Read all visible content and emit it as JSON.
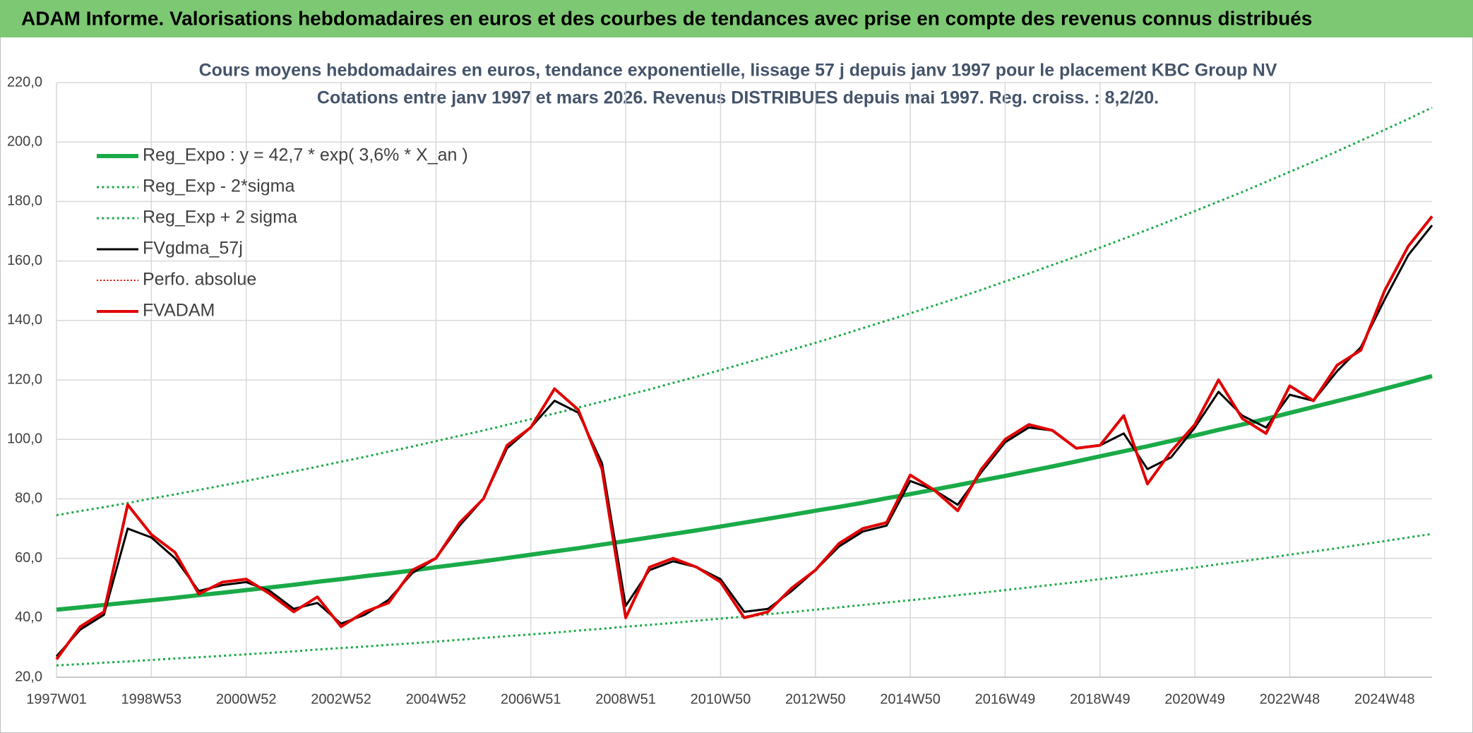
{
  "header": {
    "title": "ADAM Informe. Valorisations hebdomadaires en euros et des courbes de tendances avec prise en compte des revenus connus distribués"
  },
  "chart_data": {
    "type": "line",
    "title": "Cours moyens hebdomadaires en euros, tendance exponentielle, lissage 57 j depuis janv 1997 pour le placement KBC Group NV",
    "subtitle": "Cotations entre janv 1997 et mars 2026. Revenus DISTRIBUES depuis mai 1997. Reg. croiss. : 8,2/20.",
    "categories": [
      "1997W01",
      null,
      null,
      null,
      "1998W53",
      null,
      null,
      null,
      "2000W52",
      null,
      null,
      null,
      "2002W52",
      null,
      null,
      null,
      "2004W52",
      null,
      null,
      null,
      "2006W51",
      null,
      null,
      null,
      "2008W51",
      null,
      null,
      null,
      "2010W50",
      null,
      null,
      null,
      "2012W50",
      null,
      null,
      null,
      "2014W50",
      null,
      null,
      null,
      "2016W49",
      null,
      null,
      null,
      "2018W49",
      null,
      null,
      null,
      "2020W49",
      null,
      null,
      null,
      "2022W48",
      null,
      null,
      null,
      "2024W48",
      null,
      null
    ],
    "ylim": [
      20,
      220
    ],
    "yticks": [
      {
        "value": 20,
        "label": "20,0"
      },
      {
        "value": 40,
        "label": "40,0"
      },
      {
        "value": 60,
        "label": "60,0"
      },
      {
        "value": 80,
        "label": "80,0"
      },
      {
        "value": 100,
        "label": "100,0"
      },
      {
        "value": 120,
        "label": "120,0"
      },
      {
        "value": 140,
        "label": "140,0"
      },
      {
        "value": 160,
        "label": "160,0"
      },
      {
        "value": 180,
        "label": "180,0"
      },
      {
        "value": 200,
        "label": "200,0"
      },
      {
        "value": 220,
        "label": "220,0"
      }
    ],
    "grid": true,
    "legend": "upper-left",
    "series": [
      {
        "name": "Reg_Expo : y = 42,7 * exp( 3,6% *  X_an )",
        "color": "#1aaa48",
        "line_style": "solid",
        "line_width": 6,
        "values": [
          42.7,
          43.5,
          44.3,
          45.1,
          45.9,
          46.7,
          47.6,
          48.4,
          49.3,
          50.2,
          51.1,
          52.1,
          53.0,
          54.0,
          54.9,
          55.9,
          57.0,
          58.0,
          59.0,
          60.1,
          61.2,
          62.3,
          63.4,
          64.6,
          65.8,
          67.0,
          68.2,
          69.4,
          70.7,
          72.0,
          73.3,
          74.6,
          76.0,
          77.3,
          78.7,
          80.2,
          81.6,
          83.1,
          84.6,
          86.2,
          87.7,
          89.3,
          90.9,
          92.6,
          94.3,
          96.0,
          97.7,
          99.5,
          101.3,
          103.2,
          105.0,
          106.9,
          108.9,
          110.9,
          112.9,
          114.9,
          117.0,
          119.1,
          121.3
        ]
      },
      {
        "name": "Reg_Exp - 2*sigma",
        "color": "#1aaa48",
        "line_style": "dotted",
        "line_width": 3,
        "values": [
          24.0,
          24.4,
          24.9,
          25.3,
          25.8,
          26.3,
          26.7,
          27.2,
          27.7,
          28.2,
          28.7,
          29.3,
          29.8,
          30.3,
          30.9,
          31.4,
          32.0,
          32.6,
          33.2,
          33.8,
          34.4,
          35.0,
          35.7,
          36.3,
          37.0,
          37.6,
          38.3,
          39.0,
          39.7,
          40.4,
          41.2,
          41.9,
          42.7,
          43.5,
          44.3,
          45.1,
          45.9,
          46.7,
          47.6,
          48.4,
          49.3,
          50.2,
          51.1,
          52.0,
          53.0,
          53.9,
          54.9,
          55.9,
          56.9,
          58.0,
          59.0,
          60.1,
          61.2,
          62.3,
          63.4,
          64.6,
          65.8,
          67.0,
          68.2
        ]
      },
      {
        "name": "Reg_Exp + 2 sigma",
        "color": "#1aaa48",
        "line_style": "dotted",
        "line_width": 3,
        "values": [
          74.5,
          75.9,
          77.2,
          78.6,
          80.1,
          81.5,
          83.0,
          84.5,
          86.0,
          87.6,
          89.2,
          90.8,
          92.5,
          94.1,
          95.9,
          97.6,
          99.4,
          101.2,
          103.0,
          104.9,
          106.8,
          108.7,
          110.7,
          112.7,
          114.8,
          116.8,
          119.0,
          121.1,
          123.3,
          125.6,
          127.8,
          130.2,
          132.5,
          134.9,
          137.4,
          139.9,
          142.4,
          145.0,
          147.6,
          150.3,
          153.1,
          155.8,
          158.7,
          161.5,
          164.5,
          167.5,
          170.5,
          173.6,
          176.8,
          180.0,
          183.2,
          186.6,
          190.0,
          193.4,
          196.9,
          200.5,
          204.1,
          207.8,
          211.6
        ]
      },
      {
        "name": "FVgdma_57j",
        "color": "#000000",
        "line_style": "solid",
        "line_width": 3,
        "values": [
          27,
          36,
          41,
          70,
          67,
          60,
          49,
          51,
          52,
          49,
          43,
          45,
          38,
          41,
          46,
          55,
          60,
          71,
          80,
          97,
          104,
          113,
          109,
          92,
          44,
          56,
          59,
          57,
          53,
          42,
          43,
          49,
          56,
          64,
          69,
          71,
          86,
          83,
          78,
          89,
          99,
          104,
          103,
          97,
          98,
          102,
          90,
          94,
          104,
          116,
          108,
          104,
          115,
          113,
          123,
          131,
          147,
          162,
          172
        ]
      },
      {
        "name": "Perfo. absolue",
        "color": "#e00000",
        "line_style": "dotted",
        "line_width": 2,
        "values": [
          26,
          37,
          42,
          78,
          68,
          62,
          48,
          52,
          53,
          48,
          42,
          47,
          37,
          42,
          45,
          56,
          60,
          72,
          80,
          98,
          104,
          117,
          110,
          90,
          40,
          57,
          60,
          57,
          52,
          40,
          42,
          50,
          56,
          65,
          70,
          72,
          88,
          83,
          76,
          90,
          100,
          105,
          103,
          97,
          98,
          108,
          85,
          96,
          105,
          120,
          107,
          102,
          118,
          113,
          125,
          130,
          150,
          165,
          175
        ]
      },
      {
        "name": "FVADAM",
        "color": "#e00000",
        "line_style": "solid",
        "line_width": 4,
        "values": [
          26,
          37,
          42,
          78,
          68,
          62,
          48,
          52,
          53,
          48,
          42,
          47,
          37,
          42,
          45,
          56,
          60,
          72,
          80,
          98,
          104,
          117,
          110,
          90,
          40,
          57,
          60,
          57,
          52,
          40,
          42,
          50,
          56,
          65,
          70,
          72,
          88,
          83,
          76,
          90,
          100,
          105,
          103,
          97,
          98,
          108,
          85,
          96,
          105,
          120,
          107,
          102,
          118,
          113,
          125,
          130,
          150,
          165,
          175
        ]
      }
    ]
  }
}
